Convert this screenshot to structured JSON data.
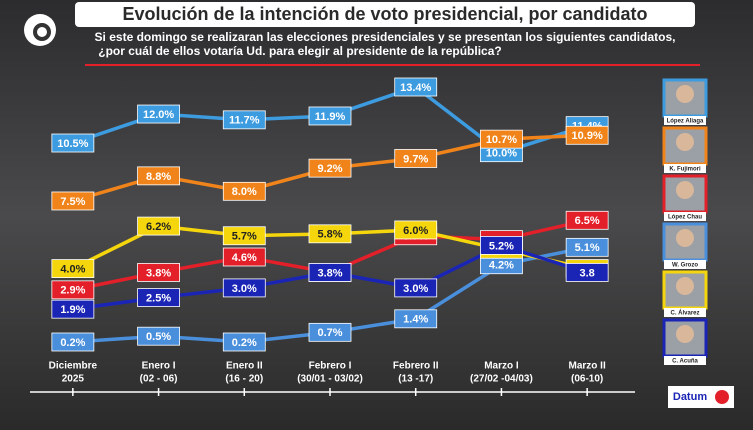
{
  "chart_data": {
    "type": "line",
    "title": "Evolución de la intención de voto presidencial, por candidato",
    "subtitle": [
      "Si este domingo se realizaran las elecciones presidenciales y se presentan los siguientes candidatos,",
      "¿por cuál de ellos votaría Ud. para elegir al presidente de la república?"
    ],
    "categories": [
      "Diciembre",
      "Enero I",
      "Enero II",
      "Febrero I",
      "Febrero II",
      "Marzo I",
      "Marzo II"
    ],
    "category_sublabels": [
      "2025",
      "(02 - 06)",
      "(16 - 20)",
      "(30/01 - 03/02)",
      "(13 -17)",
      "(27/02 -04/03)",
      "(06-10)"
    ],
    "series": [
      {
        "name": "López Aliaga",
        "color": "#3d9be0",
        "values": [
          10.5,
          12.0,
          11.7,
          11.9,
          13.4,
          10.0,
          11.4
        ],
        "value_labels": [
          "10.5%",
          "12.0%",
          "11.7%",
          "11.9%",
          "13.4%",
          "10.0%",
          "11.4%"
        ]
      },
      {
        "name": "K. Fujimori",
        "color": "#f0841a",
        "values": [
          7.5,
          8.8,
          8.0,
          9.2,
          9.7,
          10.7,
          10.9
        ],
        "value_labels": [
          "7.5%",
          "8.8%",
          "8.0%",
          "9.2%",
          "9.7%",
          "10.7%",
          "10.9%"
        ]
      },
      {
        "name": "López Chau",
        "color": "#e3202a",
        "values": [
          2.9,
          3.8,
          4.6,
          3.8,
          5.7,
          5.5,
          6.5
        ],
        "value_labels": [
          "2.9%",
          "3.8%",
          "4.6%",
          "3.8%",
          "5.7%",
          "5.5%",
          "6.5%"
        ]
      },
      {
        "name": "W. Grozo",
        "color": "#4a8fdc",
        "values": [
          0.2,
          0.5,
          0.2,
          0.7,
          1.4,
          4.2,
          5.1
        ],
        "value_labels": [
          "0.2%",
          "0.5%",
          "0.2%",
          "0.7%",
          "1.4%",
          "4.2%",
          "5.1%"
        ]
      },
      {
        "name": "C. Álvarez",
        "color": "#f5d60c",
        "values": [
          4.0,
          6.2,
          5.7,
          5.8,
          6.0,
          5.0,
          4.0
        ],
        "value_labels": [
          "4.0%",
          "6.2%",
          "5.7%",
          "5.8%",
          "6.0%",
          "5.0%",
          "4.0%"
        ]
      },
      {
        "name": "C. Acuña",
        "color": "#1b25b5",
        "values": [
          1.9,
          2.5,
          3.0,
          3.8,
          3.0,
          5.2,
          3.8
        ],
        "value_labels": [
          "1.9%",
          "2.5%",
          "3.0%",
          "3.8%",
          "3.0%",
          "5.2%",
          "3.8"
        ]
      }
    ],
    "source": "Datum"
  }
}
